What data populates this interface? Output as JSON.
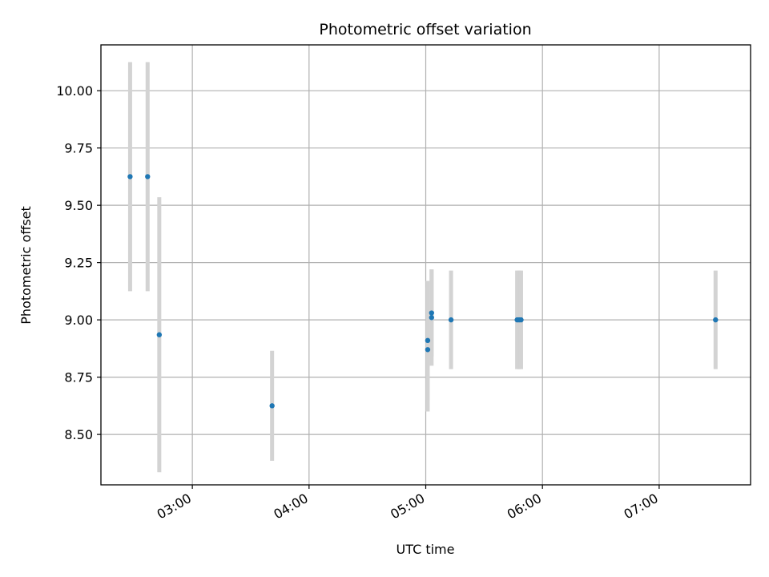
{
  "chart_data": {
    "type": "scatter",
    "title": "Photometric offset variation",
    "xlabel": "UTC time",
    "ylabel": "Photometric offset",
    "x_unit": "UTC time (HH:MM)",
    "xlim": [
      "02:13",
      "07:47"
    ],
    "ylim": [
      8.28,
      10.2
    ],
    "x_ticks": [
      "03:00",
      "04:00",
      "05:00",
      "06:00",
      "07:00"
    ],
    "y_ticks": [
      "8.50",
      "8.75",
      "9.00",
      "9.25",
      "9.50",
      "9.75",
      "10.00"
    ],
    "grid": true,
    "marker_color": "#1f77b4",
    "errorbar_color": "#d3d3d3",
    "points": [
      {
        "x": "02:28",
        "y": 9.625,
        "err": 0.5
      },
      {
        "x": "02:37",
        "y": 9.625,
        "err": 0.5
      },
      {
        "x": "02:43",
        "y": 8.935,
        "err": 0.6
      },
      {
        "x": "03:41",
        "y": 8.625,
        "err": 0.24
      },
      {
        "x": "05:01",
        "y": 8.87,
        "err": 0.27
      },
      {
        "x": "05:01",
        "y": 8.91,
        "err": 0.26
      },
      {
        "x": "05:03",
        "y": 9.03,
        "err": 0.19
      },
      {
        "x": "05:03",
        "y": 9.01,
        "err": 0.21
      },
      {
        "x": "05:13",
        "y": 9.0,
        "err": 0.215
      },
      {
        "x": "05:47",
        "y": 9.0,
        "err": 0.215
      },
      {
        "x": "05:48",
        "y": 9.0,
        "err": 0.215
      },
      {
        "x": "05:49",
        "y": 9.0,
        "err": 0.215
      },
      {
        "x": "07:29",
        "y": 9.0,
        "err": 0.215
      }
    ]
  }
}
